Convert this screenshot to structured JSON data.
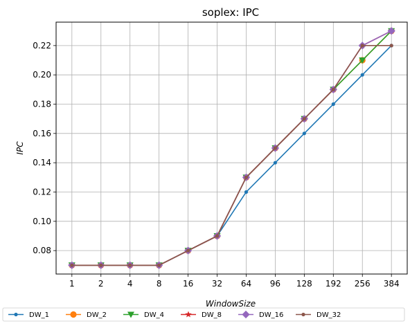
{
  "chart_data": {
    "type": "line",
    "title": "soplex: IPC",
    "xlabel": "WindowSize",
    "ylabel": "IPC",
    "categories": [
      "1",
      "2",
      "4",
      "8",
      "16",
      "32",
      "64",
      "96",
      "128",
      "192",
      "256",
      "384"
    ],
    "ylim": [
      0.064,
      0.236
    ],
    "yticks": [
      0.08,
      0.1,
      0.12,
      0.14,
      0.16,
      0.18,
      0.2,
      0.22
    ],
    "grid": true,
    "legend_position": "bottom",
    "series": [
      {
        "name": "DW_1",
        "color": "#1f77b4",
        "marker": "point",
        "values": [
          0.07,
          0.07,
          0.07,
          0.07,
          0.08,
          0.09,
          0.12,
          0.14,
          0.16,
          0.18,
          0.2,
          0.22
        ]
      },
      {
        "name": "DW_2",
        "color": "#ff7f0e",
        "marker": "circle",
        "values": [
          0.07,
          0.07,
          0.07,
          0.07,
          0.08,
          0.09,
          0.13,
          0.15,
          0.17,
          0.19,
          0.21,
          0.23
        ]
      },
      {
        "name": "DW_4",
        "color": "#2ca02c",
        "marker": "triangle-down",
        "values": [
          0.07,
          0.07,
          0.07,
          0.07,
          0.08,
          0.09,
          0.13,
          0.15,
          0.17,
          0.19,
          0.21,
          0.23
        ]
      },
      {
        "name": "DW_8",
        "color": "#d62728",
        "marker": "star",
        "values": [
          0.07,
          0.07,
          0.07,
          0.07,
          0.08,
          0.09,
          0.13,
          0.15,
          0.17,
          0.19,
          0.22,
          0.23
        ]
      },
      {
        "name": "DW_16",
        "color": "#9467bd",
        "marker": "diamond",
        "values": [
          0.07,
          0.07,
          0.07,
          0.07,
          0.08,
          0.09,
          0.13,
          0.15,
          0.17,
          0.19,
          0.22,
          0.23
        ]
      },
      {
        "name": "DW_32",
        "color": "#8c564b",
        "marker": "hexagon",
        "values": [
          0.07,
          0.07,
          0.07,
          0.07,
          0.08,
          0.09,
          0.13,
          0.15,
          0.17,
          0.19,
          0.22,
          0.22
        ]
      }
    ]
  }
}
